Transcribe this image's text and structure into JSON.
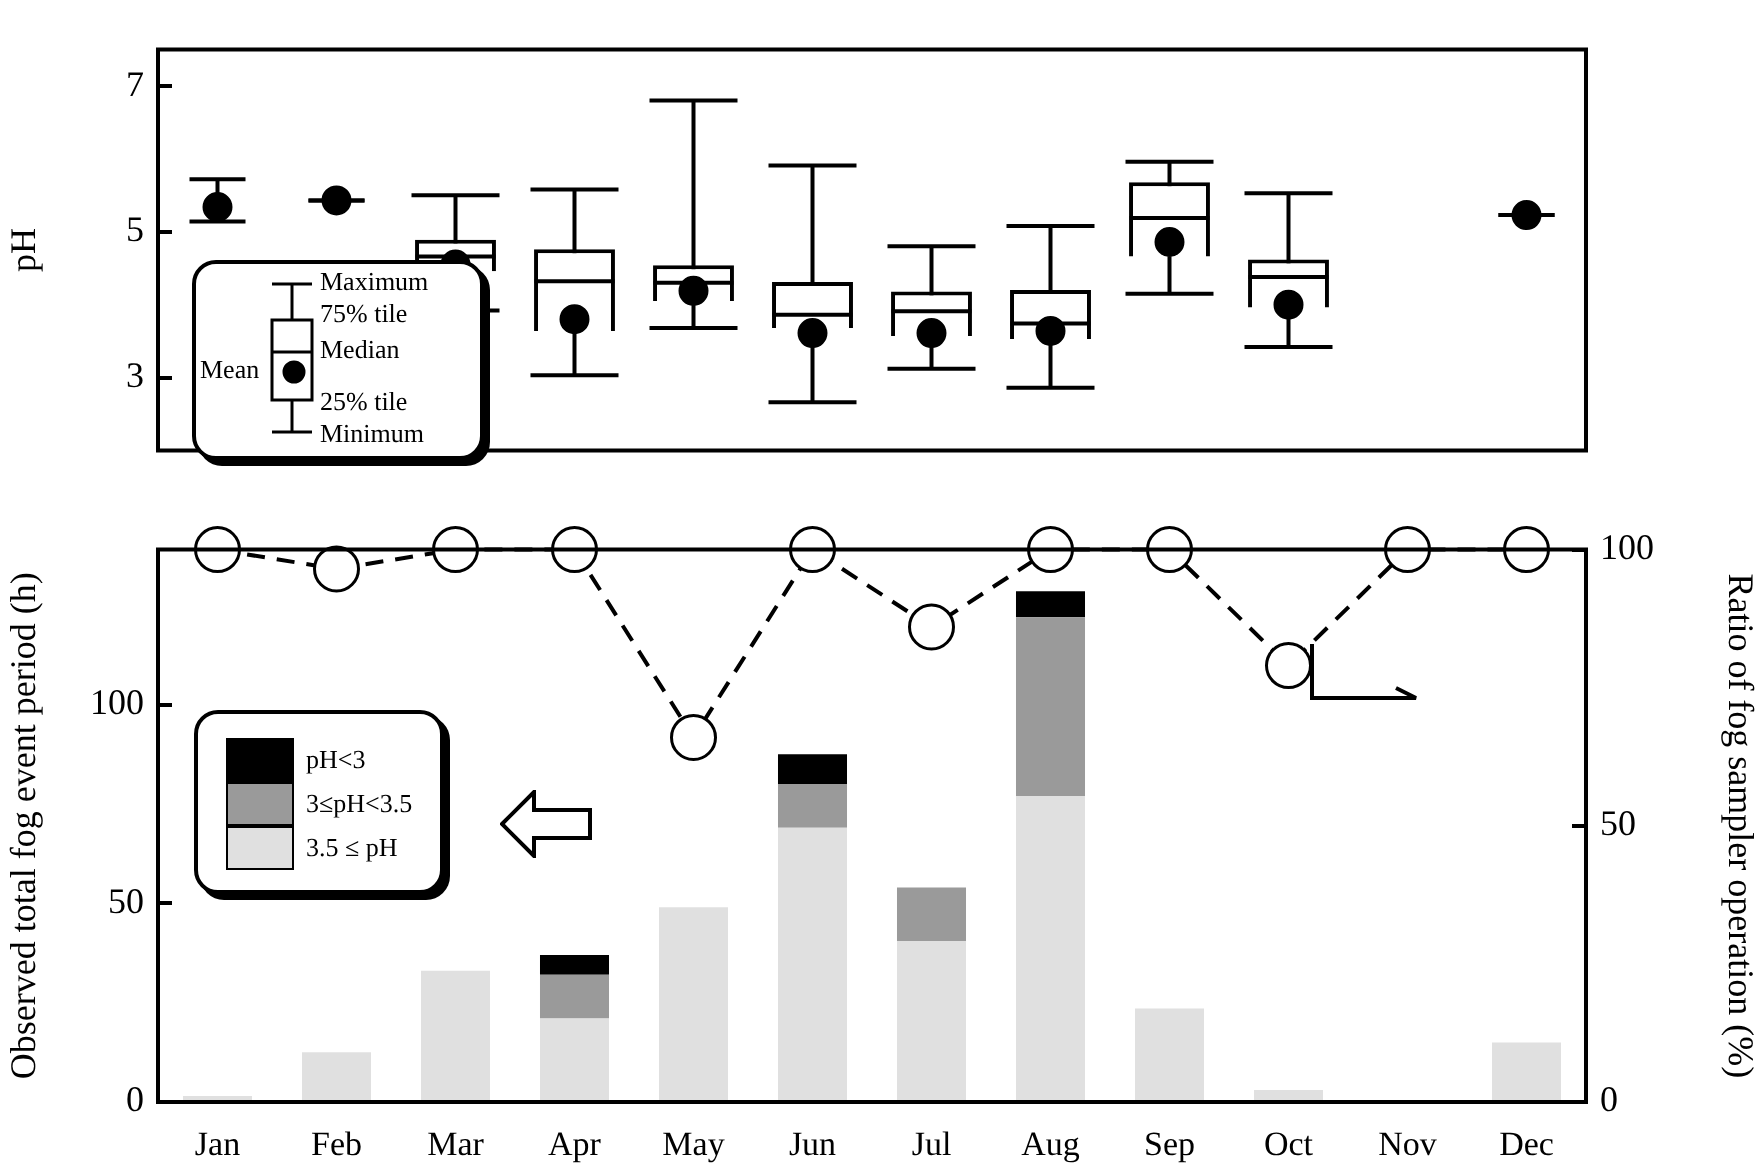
{
  "chart_data": [
    {
      "type": "box",
      "ylabel": "pH",
      "categories": [
        "Jan",
        "Feb",
        "Mar",
        "Apr",
        "May",
        "Jun",
        "Jul",
        "Aug",
        "Sep",
        "Oct",
        "Nov",
        "Dec"
      ],
      "ylim": [
        2,
        7.5
      ],
      "yticks": [
        3,
        5,
        7
      ],
      "tick_labels": "y",
      "grid": false,
      "boxes": [
        null,
        null,
        {
          "low": 3.92,
          "q1": 4.46,
          "median": 4.66,
          "q3": 4.89,
          "high": 5.5,
          "mean": 4.55
        },
        {
          "low": 3.03,
          "q1": 3.64,
          "median": 4.32,
          "q3": 4.76,
          "high": 5.58,
          "mean": 3.8
        },
        {
          "low": 3.68,
          "q1": 4.05,
          "median": 4.3,
          "q3": 4.54,
          "high": 6.8,
          "mean": 4.19
        },
        {
          "low": 2.66,
          "q1": 3.68,
          "median": 3.86,
          "q3": 4.31,
          "high": 5.91,
          "mean": 3.61
        },
        {
          "low": 3.12,
          "q1": 3.57,
          "median": 3.91,
          "q3": 4.18,
          "high": 4.8,
          "mean": 3.61
        },
        {
          "low": 2.86,
          "q1": 3.53,
          "median": 3.74,
          "q3": 4.2,
          "high": 5.08,
          "mean": 3.64
        },
        {
          "low": 4.15,
          "q1": 4.66,
          "median": 5.19,
          "q3": 5.68,
          "high": 5.96,
          "mean": 4.86
        },
        {
          "low": 3.42,
          "q1": 3.96,
          "median": 4.38,
          "q3": 4.62,
          "high": 5.53,
          "mean": 4.0
        },
        null,
        null
      ],
      "series": [
        {
          "type": "scatter",
          "x": [
            "Jan",
            "Feb",
            "Dec"
          ],
          "values": [
            5.34,
            5.43,
            5.23
          ],
          "errors": [
            [
              5.14,
              5.72
            ],
            [
              5.43,
              5.43
            ],
            [
              5.23,
              5.23
            ]
          ],
          "color": "#000000",
          "marker": "circle"
        }
      ],
      "annotations": [
        "Maximum",
        "75% tile",
        "Median",
        "Mean",
        "25% tile",
        "Minimum"
      ]
    },
    {
      "type": "bar",
      "stacked": true,
      "ylabel": "Observed total fog event period (h)",
      "y2label": "Ratio of fog sampler operation (%)",
      "categories": [
        "Jan",
        "Feb",
        "Mar",
        "Apr",
        "May",
        "Jun",
        "Jul",
        "Aug",
        "Sep",
        "Oct",
        "Nov",
        "Dec"
      ],
      "ylim": [
        0,
        139
      ],
      "yticks": [
        0,
        50,
        100
      ],
      "y2lim": [
        0,
        100
      ],
      "y2ticks": [
        0,
        50,
        100
      ],
      "legend": "left",
      "grid": false,
      "series": [
        {
          "name": "3.5 ≤ pH",
          "color": "#e0e0e0",
          "values": [
            1.5,
            12.5,
            33,
            21,
            49,
            69,
            40.5,
            77,
            23.5,
            3,
            0,
            15
          ]
        },
        {
          "name": "3≤pH<3.5",
          "color": "#9a9a9a",
          "values": [
            0,
            0,
            0,
            11,
            0,
            11,
            13.5,
            45,
            0,
            0,
            0,
            0
          ]
        },
        {
          "name": "pH<3",
          "color": "#000000",
          "values": [
            0,
            0,
            0,
            5,
            0,
            7.5,
            0,
            6.5,
            0,
            0,
            0,
            0
          ]
        },
        {
          "type": "line",
          "axis": "y2",
          "color": "#000000",
          "line_style": "dashed",
          "marker": "circle",
          "values": [
            100,
            96.5,
            100,
            100,
            66,
            100,
            86,
            100,
            100,
            79,
            100,
            100
          ]
        }
      ]
    }
  ]
}
